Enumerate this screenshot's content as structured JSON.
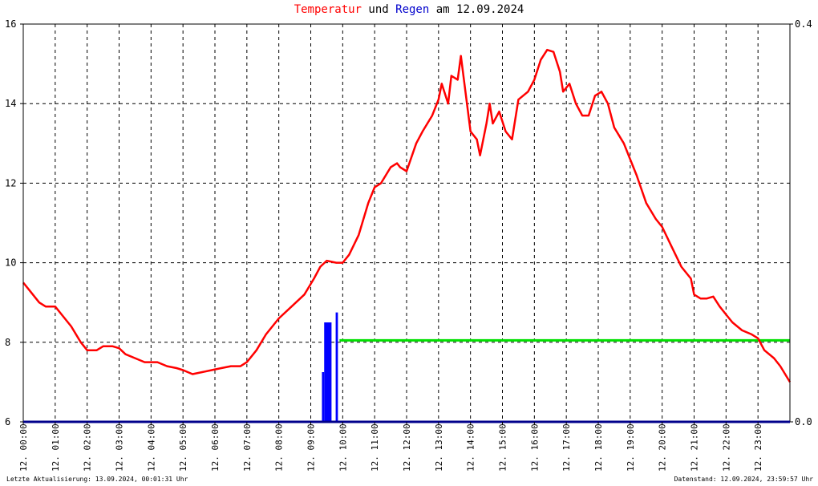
{
  "title": {
    "part1": "Temperatur",
    "part2": " und ",
    "part3": "Regen",
    "part4": " am 12.09.2024"
  },
  "footer": {
    "left": "Letzte Aktualisierung: 13.09.2024, 00:01:31 Uhr",
    "right": "Datenstand: 12.09.2024, 23:59:57 Uhr"
  },
  "colors": {
    "temperature": "#ff0000",
    "rain": "#0000ff",
    "reference": "#00e000",
    "baseline": "#00008b",
    "grid": "#000000"
  },
  "chart_data": {
    "type": "line",
    "x_unit": "hour of day",
    "xlim": [
      0,
      24
    ],
    "ylim_left": [
      6,
      16
    ],
    "ylim_right": [
      0.0,
      0.4
    ],
    "left_ticks": [
      "6",
      "8",
      "10",
      "12",
      "14",
      "16"
    ],
    "right_ticks": [
      "0.0",
      "0.4"
    ],
    "x_tick_labels": [
      "12. 00:00",
      "12. 01:00",
      "12. 02:00",
      "12. 03:00",
      "12. 04:00",
      "12. 05:00",
      "12. 06:00",
      "12. 07:00",
      "12. 08:00",
      "12. 09:00",
      "12. 10:00",
      "12. 11:00",
      "12. 12:00",
      "12. 13:00",
      "12. 14:00",
      "12. 15:00",
      "12. 16:00",
      "12. 17:00",
      "12. 18:00",
      "12. 19:00",
      "12. 20:00",
      "12. 21:00",
      "12. 22:00",
      "12. 23:00"
    ],
    "grid": true,
    "series": [
      {
        "kind": "temperature",
        "axis": "left",
        "x": [
          0,
          0.2,
          0.5,
          0.7,
          1.0,
          1.2,
          1.5,
          1.8,
          2.0,
          2.3,
          2.5,
          2.8,
          3.0,
          3.2,
          3.5,
          3.8,
          4.0,
          4.2,
          4.5,
          4.8,
          5.0,
          5.3,
          5.6,
          5.9,
          6.2,
          6.5,
          6.8,
          7.0,
          7.3,
          7.6,
          8.0,
          8.4,
          8.8,
          9.1,
          9.3,
          9.5,
          9.8,
          10.0,
          10.2,
          10.5,
          10.8,
          11.0,
          11.2,
          11.5,
          11.7,
          11.8,
          12.0,
          12.3,
          12.5,
          12.8,
          13.0,
          13.1,
          13.3,
          13.4,
          13.6,
          13.7,
          14.0,
          14.2,
          14.3,
          14.5,
          14.6,
          14.7,
          14.9,
          15.1,
          15.3,
          15.5,
          15.8,
          16.0,
          16.2,
          16.4,
          16.6,
          16.8,
          16.9,
          17.1,
          17.3,
          17.5,
          17.7,
          17.9,
          18.1,
          18.3,
          18.5,
          18.8,
          19.0,
          19.2,
          19.5,
          19.8,
          20.0,
          20.3,
          20.6,
          20.9,
          21.0,
          21.2,
          21.4,
          21.6,
          21.8,
          22.0,
          22.2,
          22.5,
          22.8,
          23.0,
          23.2,
          23.5,
          23.7,
          24.0
        ],
        "values": [
          9.5,
          9.3,
          9.0,
          8.9,
          8.9,
          8.7,
          8.4,
          8.0,
          7.8,
          7.8,
          7.9,
          7.9,
          7.85,
          7.7,
          7.6,
          7.5,
          7.5,
          7.5,
          7.4,
          7.35,
          7.3,
          7.2,
          7.25,
          7.3,
          7.35,
          7.4,
          7.4,
          7.5,
          7.8,
          8.2,
          8.6,
          8.9,
          9.2,
          9.6,
          9.9,
          10.05,
          10.0,
          10.0,
          10.2,
          10.7,
          11.5,
          11.9,
          12.0,
          12.4,
          12.5,
          12.4,
          12.3,
          13.0,
          13.3,
          13.7,
          14.1,
          14.5,
          14.0,
          14.7,
          14.6,
          15.2,
          13.3,
          13.1,
          12.7,
          13.5,
          14.0,
          13.5,
          13.8,
          13.3,
          13.1,
          14.1,
          14.3,
          14.6,
          15.1,
          15.35,
          15.3,
          14.8,
          14.3,
          14.5,
          14.0,
          13.7,
          13.7,
          14.2,
          14.3,
          14.0,
          13.4,
          13.0,
          12.6,
          12.2,
          11.5,
          11.1,
          10.9,
          10.4,
          9.9,
          9.6,
          9.2,
          9.1,
          9.1,
          9.15,
          8.9,
          8.7,
          8.5,
          8.3,
          8.2,
          8.1,
          7.8,
          7.6,
          7.4,
          7.0
        ]
      },
      {
        "kind": "rain",
        "axis": "right",
        "bars": [
          {
            "x0": 9.35,
            "x1": 9.42,
            "value": 0.05
          },
          {
            "x0": 9.42,
            "x1": 9.65,
            "value": 0.1
          },
          {
            "x0": 9.78,
            "x1": 9.85,
            "value": 0.11
          }
        ]
      },
      {
        "kind": "reference",
        "axis": "left",
        "x": [
          9.9,
          24.0
        ],
        "values": [
          8.05,
          8.05
        ]
      }
    ]
  }
}
